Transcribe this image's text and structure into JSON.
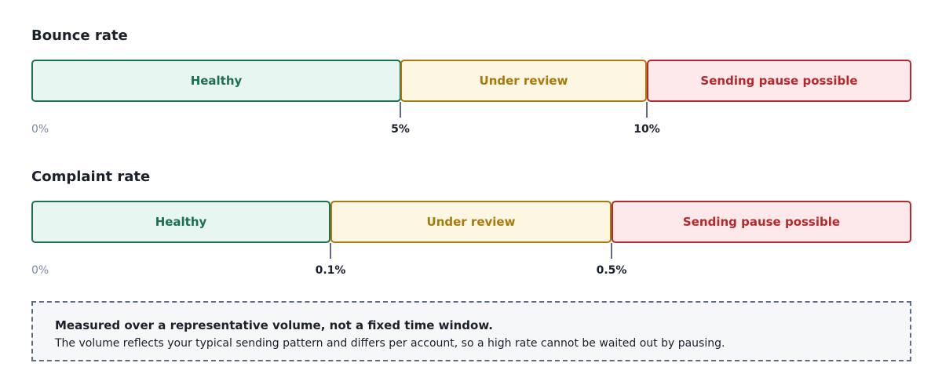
{
  "bounce": {
    "title": "Bounce rate",
    "segments": [
      {
        "label": "Healthy",
        "status": "green"
      },
      {
        "label": "Under review",
        "status": "yellow"
      },
      {
        "label": "Sending pause possible",
        "status": "red"
      }
    ],
    "axis_start": "0%",
    "thresholds": [
      "5%",
      "10%"
    ]
  },
  "complaint": {
    "title": "Complaint rate",
    "segments": [
      {
        "label": "Healthy",
        "status": "green"
      },
      {
        "label": "Under review",
        "status": "yellow"
      },
      {
        "label": "Sending pause possible",
        "status": "red"
      }
    ],
    "axis_start": "0%",
    "thresholds": [
      "0.1%",
      "0.5%"
    ]
  },
  "note": {
    "title": "Measured over a representative volume, not a fixed time window.",
    "body": "The volume reflects your typical sending pattern and differs per account, so a high rate cannot be waited out by pausing."
  },
  "colors": {
    "healthy": "#1c6f52",
    "review": "#a87a0c",
    "pause": "#b5282d",
    "tick": "#5f6b84"
  }
}
